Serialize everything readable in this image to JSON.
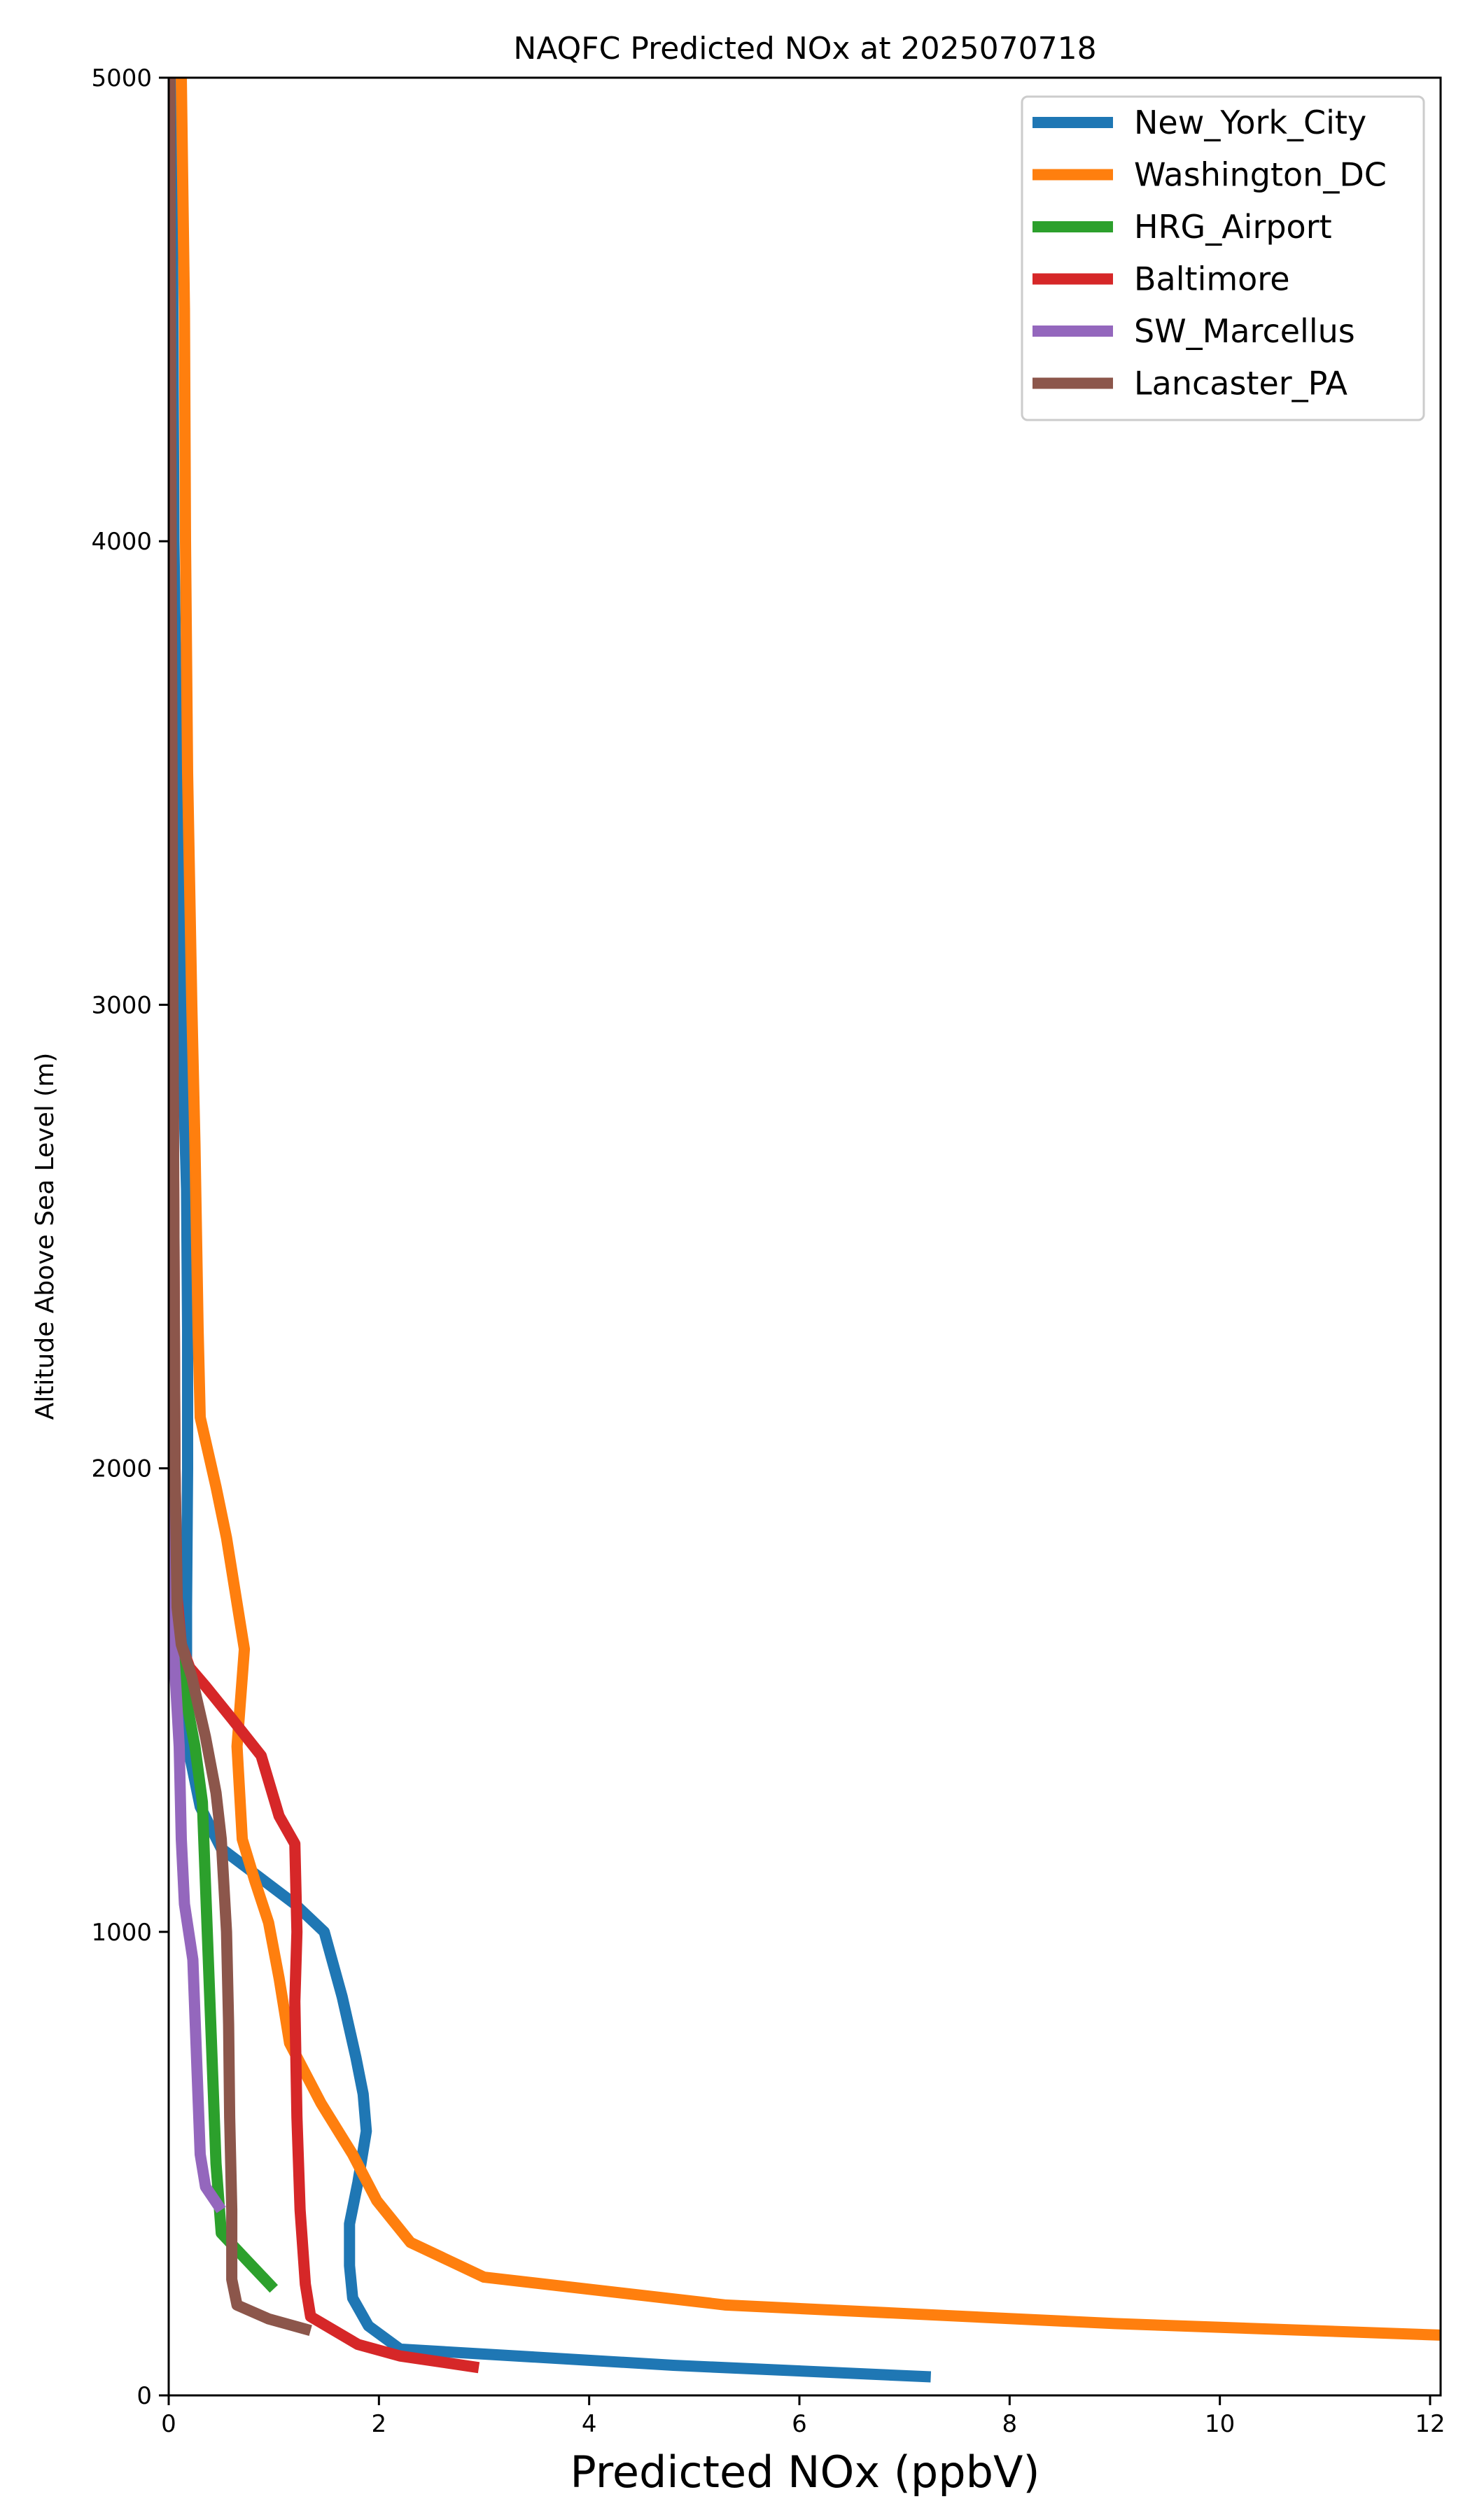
{
  "chart_data": {
    "type": "line",
    "title": "NAQFC Predicted NOx at 2025070718",
    "xlabel": "Predicted NOx (ppbV)",
    "ylabel": "Altitude Above Sea Level (m)",
    "xlim": [
      0,
      12.1
    ],
    "ylim": [
      0,
      5000
    ],
    "xticks": [
      0,
      2,
      4,
      6,
      8,
      10,
      12
    ],
    "yticks": [
      0,
      1000,
      2000,
      3000,
      4000,
      5000
    ],
    "xtick_labels": [
      "0",
      "2",
      "4",
      "6",
      "8",
      "10",
      "12"
    ],
    "ytick_labels": [
      "0",
      "1000",
      "2000",
      "3000",
      "4000",
      "5000"
    ],
    "grid": false,
    "legend": "top-right",
    "series": [
      {
        "name": "New_York_City",
        "color": "#1f77b4",
        "points": [
          [
            7.25,
            40
          ],
          [
            4.8,
            65
          ],
          [
            2.2,
            100
          ],
          [
            1.9,
            150
          ],
          [
            1.75,
            210
          ],
          [
            1.72,
            280
          ],
          [
            1.72,
            370
          ],
          [
            1.8,
            460
          ],
          [
            1.88,
            570
          ],
          [
            1.85,
            650
          ],
          [
            1.78,
            730
          ],
          [
            1.65,
            860
          ],
          [
            1.48,
            1000
          ],
          [
            1.2,
            1060
          ],
          [
            0.85,
            1120
          ],
          [
            0.5,
            1180
          ],
          [
            0.3,
            1270
          ],
          [
            0.2,
            1380
          ],
          [
            0.17,
            1500
          ],
          [
            0.17,
            1700
          ],
          [
            0.18,
            2000
          ],
          [
            0.18,
            2300
          ],
          [
            0.17,
            2600
          ],
          [
            0.12,
            3000
          ],
          [
            0.08,
            3500
          ],
          [
            0.05,
            4000
          ],
          [
            0.04,
            4500
          ],
          [
            0.03,
            5000
          ]
        ]
      },
      {
        "name": "Washington_DC",
        "color": "#ff7f0e",
        "points": [
          [
            12.1,
            130
          ],
          [
            9.0,
            155
          ],
          [
            5.3,
            195
          ],
          [
            3.0,
            255
          ],
          [
            2.3,
            330
          ],
          [
            1.98,
            420
          ],
          [
            1.75,
            520
          ],
          [
            1.45,
            630
          ],
          [
            1.15,
            760
          ],
          [
            1.05,
            900
          ],
          [
            0.95,
            1020
          ],
          [
            0.82,
            1110
          ],
          [
            0.7,
            1200
          ],
          [
            0.65,
            1400
          ],
          [
            0.72,
            1610
          ],
          [
            0.55,
            1850
          ],
          [
            0.45,
            1960
          ],
          [
            0.3,
            2110
          ],
          [
            0.28,
            2300
          ],
          [
            0.25,
            2700
          ],
          [
            0.22,
            3000
          ],
          [
            0.18,
            3500
          ],
          [
            0.16,
            4000
          ],
          [
            0.15,
            4500
          ],
          [
            0.12,
            5000
          ]
        ]
      },
      {
        "name": "HRG_Airport",
        "color": "#2ca02c",
        "points": [
          [
            1.0,
            230
          ],
          [
            0.75,
            290
          ],
          [
            0.5,
            350
          ],
          [
            0.45,
            500
          ],
          [
            0.4,
            800
          ],
          [
            0.35,
            1100
          ],
          [
            0.32,
            1280
          ],
          [
            0.25,
            1400
          ],
          [
            0.15,
            1520
          ],
          [
            0.05,
            1620
          ],
          [
            0.03,
            1800
          ],
          [
            0.02,
            2200
          ],
          [
            0.01,
            3000
          ]
        ]
      },
      {
        "name": "Baltimore",
        "color": "#d62728",
        "points": [
          [
            2.95,
            60
          ],
          [
            2.2,
            85
          ],
          [
            1.8,
            110
          ],
          [
            1.35,
            170
          ],
          [
            1.3,
            240
          ],
          [
            1.25,
            400
          ],
          [
            1.22,
            600
          ],
          [
            1.2,
            850
          ],
          [
            1.22,
            1000
          ],
          [
            1.2,
            1190
          ],
          [
            1.05,
            1250
          ],
          [
            0.88,
            1380
          ],
          [
            0.6,
            1460
          ],
          [
            0.35,
            1530
          ],
          [
            0.2,
            1570
          ],
          [
            0.12,
            1620
          ],
          [
            0.08,
            1720
          ],
          [
            0.06,
            2000
          ],
          [
            0.05,
            2500
          ],
          [
            0.04,
            3000
          ]
        ]
      },
      {
        "name": "SW_Marcellus",
        "color": "#9467bd",
        "points": [
          [
            0.5,
            400
          ],
          [
            0.35,
            450
          ],
          [
            0.3,
            520
          ],
          [
            0.27,
            700
          ],
          [
            0.23,
            940
          ],
          [
            0.15,
            1060
          ],
          [
            0.12,
            1200
          ],
          [
            0.1,
            1400
          ],
          [
            0.06,
            1560
          ],
          [
            0.03,
            1660
          ],
          [
            0.02,
            1800
          ],
          [
            0.01,
            2200
          ]
        ]
      },
      {
        "name": "Lancaster_PA",
        "color": "#8c564b",
        "points": [
          [
            1.35,
            140
          ],
          [
            0.95,
            165
          ],
          [
            0.65,
            195
          ],
          [
            0.6,
            250
          ],
          [
            0.6,
            400
          ],
          [
            0.58,
            600
          ],
          [
            0.57,
            800
          ],
          [
            0.55,
            1000
          ],
          [
            0.5,
            1200
          ],
          [
            0.45,
            1300
          ],
          [
            0.35,
            1420
          ],
          [
            0.22,
            1550
          ],
          [
            0.12,
            1620
          ],
          [
            0.08,
            1700
          ],
          [
            0.06,
            2000
          ],
          [
            0.05,
            2500
          ],
          [
            0.04,
            3000
          ],
          [
            0.03,
            3600
          ],
          [
            0.02,
            4200
          ],
          [
            0.01,
            5000
          ]
        ]
      }
    ]
  }
}
